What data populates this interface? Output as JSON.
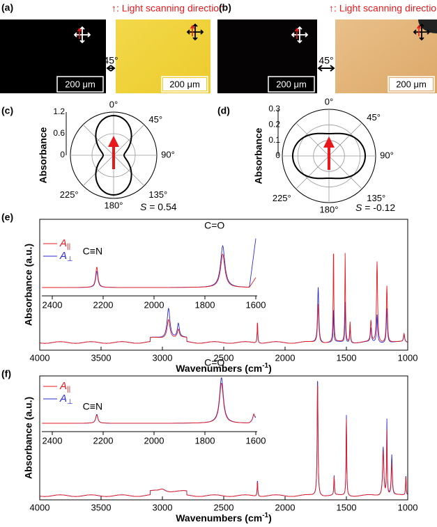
{
  "panels": {
    "a": {
      "label": "(a)",
      "direction": "↑: Light scanning direction",
      "angle": "45°",
      "scale": "200 μm"
    },
    "b": {
      "label": "(b)",
      "direction": "↑: Light scanning direction",
      "angle": "45°",
      "scale": "200 μm"
    },
    "c": {
      "label": "(c)",
      "ylabel": "Absorbance",
      "rticks": [
        0,
        0.6,
        1.2
      ],
      "angles": [
        "0°",
        "45°",
        "90°",
        "135°",
        "180°",
        "225°"
      ],
      "s_symbol": "S",
      "s_value": "= 0.54"
    },
    "d": {
      "label": "(d)",
      "ylabel": "Absorbance",
      "rticks": [
        0,
        0.1,
        0.2,
        0.3
      ],
      "angles": [
        "0°",
        "45°",
        "90°",
        "135°",
        "180°",
        "225°"
      ],
      "s_symbol": "S",
      "s_value": "= -0.12"
    },
    "e": {
      "label": "(e)",
      "ylabel": "Absorbance (a.u.)",
      "xlabel": [
        "Wavenumbers (cm",
        "-1",
        ")"
      ],
      "xticks": [
        4000,
        3500,
        3000,
        2500,
        2000,
        1500,
        1000
      ],
      "inset_xticks": [
        2400,
        2200,
        2000,
        1800,
        1600
      ],
      "legend": [
        {
          "name": "A",
          "sub": "||",
          "color": "#e8191c"
        },
        {
          "name": "A",
          "sub": "⊥",
          "color": "#2b2bd9"
        }
      ],
      "annotations": [
        "C≡N",
        "C=O"
      ]
    },
    "f": {
      "label": "(f)",
      "ylabel": "Absorbance (a.u.)",
      "xlabel": [
        "Wavenumbers (cm",
        "-1",
        ")"
      ],
      "xticks": [
        4000,
        3500,
        3000,
        2500,
        2000,
        1500,
        1000
      ],
      "inset_xticks": [
        2400,
        2200,
        2000,
        1800,
        1600
      ],
      "legend": [
        {
          "name": "A",
          "sub": "||",
          "color": "#e8191c"
        },
        {
          "name": "A",
          "sub": "⊥",
          "color": "#2b2bd9"
        }
      ],
      "annotations": [
        "C≡N",
        "C=O"
      ]
    }
  }
}
